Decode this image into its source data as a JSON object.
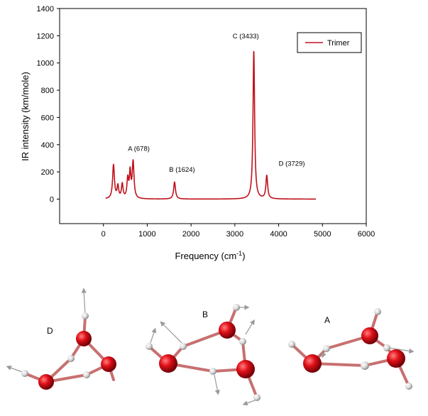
{
  "chart_data": {
    "type": "line",
    "xlabel": "Frequency (cm",
    "xlabel_sup": "-1",
    "xlabel_tail": ")",
    "ylabel": "IR intensity (km/mole)",
    "xlim": [
      -1000,
      6000
    ],
    "ylim": [
      -180,
      1400
    ],
    "x_ticks": [
      0,
      1000,
      2000,
      3000,
      4000,
      5000,
      6000
    ],
    "y_ticks": [
      0,
      200,
      400,
      600,
      800,
      1000,
      1200,
      1400
    ],
    "grid": false,
    "legend_position": "top-right",
    "series": [
      {
        "name": "Trimer",
        "color": "#c0101a",
        "peaks": [
          {
            "x": 230,
            "y": 248,
            "w": 25
          },
          {
            "x": 330,
            "y": 90,
            "w": 22
          },
          {
            "x": 430,
            "y": 105,
            "w": 22
          },
          {
            "x": 555,
            "y": 140,
            "w": 22
          },
          {
            "x": 610,
            "y": 185,
            "w": 20
          },
          {
            "x": 678,
            "y": 268,
            "w": 24
          },
          {
            "x": 1624,
            "y": 125,
            "w": 25
          },
          {
            "x": 3433,
            "y": 1085,
            "w": 22
          },
          {
            "x": 3729,
            "y": 170,
            "w": 24
          }
        ],
        "x_start": 50,
        "x_end": 4850
      }
    ],
    "annotations": [
      {
        "text": "A (678)",
        "x": 560,
        "y": 355
      },
      {
        "text": "B (1624)",
        "x": 1500,
        "y": 200
      },
      {
        "text": "C (3433)",
        "x": 2950,
        "y": 1180
      },
      {
        "text": "D (3729)",
        "x": 4000,
        "y": 245
      }
    ]
  },
  "molecules": [
    {
      "label": "D"
    },
    {
      "label": "B"
    },
    {
      "label": "A"
    }
  ],
  "colors": {
    "oxygen": "#d8101a",
    "hydrogen": "#e8e8e8",
    "bond": "#c87070",
    "arrow": "#a0a0a0"
  }
}
